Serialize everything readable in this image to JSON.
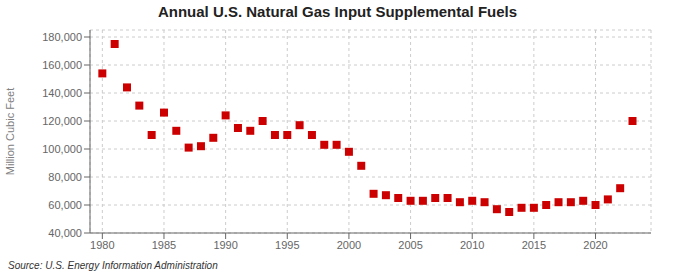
{
  "chart_data": {
    "type": "scatter",
    "title": "Annual U.S. Natural Gas Input Supplemental Fuels",
    "ylabel": "Million Cubic Feet",
    "annotations": [
      "Source: U.S. Energy Information Administration"
    ],
    "x": [
      1980,
      1981,
      1982,
      1983,
      1984,
      1985,
      1986,
      1987,
      1988,
      1989,
      1990,
      1991,
      1992,
      1993,
      1994,
      1995,
      1996,
      1997,
      1998,
      1999,
      2000,
      2001,
      2002,
      2003,
      2004,
      2005,
      2006,
      2007,
      2008,
      2009,
      2010,
      2011,
      2012,
      2013,
      2014,
      2015,
      2016,
      2017,
      2018,
      2019,
      2020,
      2021,
      2022,
      2023
    ],
    "values": [
      154000,
      175000,
      144000,
      131000,
      110000,
      126000,
      113000,
      101000,
      102000,
      108000,
      124000,
      115000,
      113000,
      120000,
      110000,
      110000,
      117000,
      110000,
      103000,
      103000,
      98000,
      88000,
      68000,
      67000,
      65000,
      63000,
      63000,
      65000,
      65000,
      62000,
      63000,
      62000,
      57000,
      55000,
      58000,
      58000,
      60000,
      62000,
      62000,
      63000,
      60000,
      64000,
      72000,
      120000
    ],
    "color": "#cc0000",
    "marker": "square",
    "xlim": [
      1979,
      2024.5
    ],
    "xticks": [
      1980,
      1985,
      1990,
      1995,
      2000,
      2005,
      2010,
      2015,
      2020
    ],
    "ylim": [
      40000,
      185000
    ],
    "yticks": [
      {
        "value": 40000,
        "label": "40,000"
      },
      {
        "value": 60000,
        "label": "60,000"
      },
      {
        "value": 80000,
        "label": "80,000"
      },
      {
        "value": 100000,
        "label": "100,000"
      },
      {
        "value": 120000,
        "label": "120,000"
      },
      {
        "value": 140000,
        "label": "140,000"
      },
      {
        "value": 160000,
        "label": "160,000"
      },
      {
        "value": 180000,
        "label": "180,000"
      }
    ],
    "grid": true
  }
}
